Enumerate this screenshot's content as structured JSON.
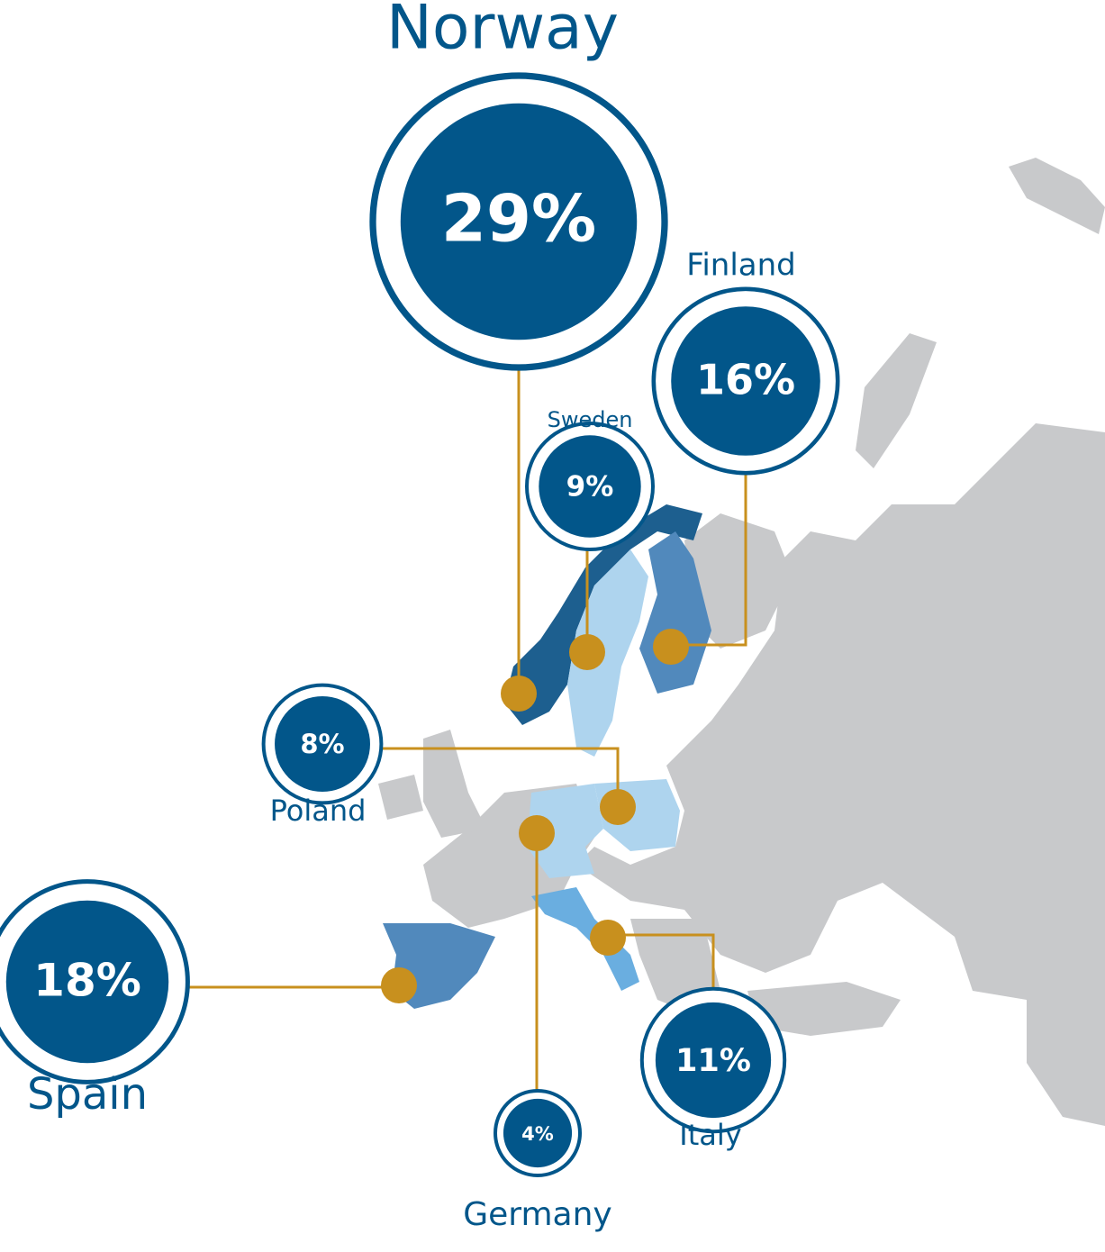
{
  "countries": [
    {
      "name": "Norway",
      "value": 29,
      "value_label": "29%"
    },
    {
      "name": "Finland",
      "value": 16,
      "value_label": "16%"
    },
    {
      "name": "Sweden",
      "value": 9,
      "value_label": "9%"
    },
    {
      "name": "Poland",
      "value": 8,
      "value_label": "8%"
    },
    {
      "name": "Spain",
      "value": 18,
      "value_label": "18%"
    },
    {
      "name": "Germany",
      "value": 4,
      "value_label": "4%"
    },
    {
      "name": "Italy",
      "value": 11,
      "value_label": "11%"
    }
  ]
}
